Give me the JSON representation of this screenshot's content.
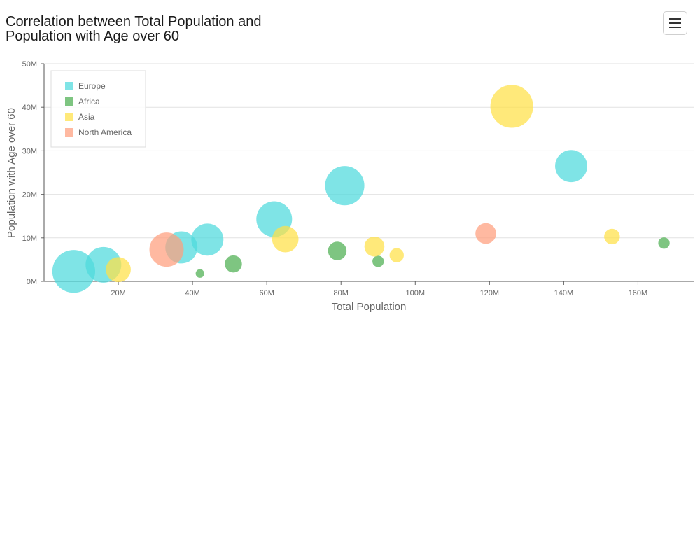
{
  "title": "Correlation between Total Population and Population with Age over 60",
  "menu": {
    "icon": "hamburger-menu-icon"
  },
  "chart_data": {
    "type": "scatter",
    "subtype": "bubble",
    "title": "Correlation between Total Population and Population with Age over 60",
    "xlabel": "Total Population",
    "ylabel": "Population with Age over 60",
    "xlim": [
      0,
      175000000
    ],
    "ylim": [
      0,
      50000000
    ],
    "x_ticks": [
      {
        "value": 20000000,
        "label": "20M"
      },
      {
        "value": 40000000,
        "label": "40M"
      },
      {
        "value": 60000000,
        "label": "60M"
      },
      {
        "value": 80000000,
        "label": "80M"
      },
      {
        "value": 100000000,
        "label": "100M"
      },
      {
        "value": 120000000,
        "label": "120M"
      },
      {
        "value": 140000000,
        "label": "140M"
      },
      {
        "value": 160000000,
        "label": "160M"
      }
    ],
    "y_ticks": [
      {
        "value": 0,
        "label": "0M"
      },
      {
        "value": 10000000,
        "label": "10M"
      },
      {
        "value": 20000000,
        "label": "20M"
      },
      {
        "value": 30000000,
        "label": "30M"
      },
      {
        "value": 40000000,
        "label": "40M"
      },
      {
        "value": 50000000,
        "label": "50M"
      }
    ],
    "grid": true,
    "legend_position": "top-left",
    "bubble_size_encoding": "relative bubble size (unlabeled)",
    "series": [
      {
        "name": "Europe",
        "color": "#4dd9dd",
        "points": [
          {
            "x": 8000000,
            "y": 2300000,
            "size": 6.0
          },
          {
            "x": 16000000,
            "y": 3800000,
            "size": 5.0
          },
          {
            "x": 37000000,
            "y": 7800000,
            "size": 4.5
          },
          {
            "x": 44000000,
            "y": 9600000,
            "size": 4.5
          },
          {
            "x": 62000000,
            "y": 14300000,
            "size": 5.0
          },
          {
            "x": 81000000,
            "y": 22000000,
            "size": 5.5
          },
          {
            "x": 142000000,
            "y": 26500000,
            "size": 4.5
          }
        ]
      },
      {
        "name": "Africa",
        "color": "#4caf50",
        "points": [
          {
            "x": 42000000,
            "y": 1800000,
            "size": 1.2
          },
          {
            "x": 51000000,
            "y": 4000000,
            "size": 2.4
          },
          {
            "x": 79000000,
            "y": 7000000,
            "size": 2.6
          },
          {
            "x": 90000000,
            "y": 4600000,
            "size": 1.6
          },
          {
            "x": 167000000,
            "y": 8800000,
            "size": 1.6
          }
        ]
      },
      {
        "name": "Asia",
        "color": "#ffe047",
        "points": [
          {
            "x": 20000000,
            "y": 2700000,
            "size": 3.5
          },
          {
            "x": 65000000,
            "y": 9700000,
            "size": 3.7
          },
          {
            "x": 89000000,
            "y": 8000000,
            "size": 2.8
          },
          {
            "x": 95000000,
            "y": 6000000,
            "size": 2.0
          },
          {
            "x": 126000000,
            "y": 40200000,
            "size": 6.0
          },
          {
            "x": 153000000,
            "y": 10300000,
            "size": 2.2
          }
        ]
      },
      {
        "name": "North America",
        "color": "#ff9e7d",
        "points": [
          {
            "x": 33000000,
            "y": 7300000,
            "size": 4.8
          },
          {
            "x": 119000000,
            "y": 11000000,
            "size": 2.9
          }
        ]
      }
    ]
  }
}
